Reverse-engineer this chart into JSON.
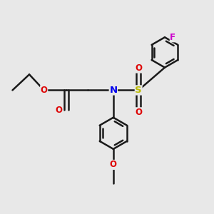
{
  "bg_color": "#e8e8e8",
  "bond_color": "#1a1a1a",
  "bond_width": 1.8,
  "atom_colors": {
    "O": "#dd0000",
    "N": "#0000ee",
    "S": "#bbbb00",
    "F": "#cc00cc",
    "C": "#1a1a1a"
  },
  "font_size": 8.5,
  "figsize": [
    3.0,
    3.0
  ],
  "dpi": 100
}
